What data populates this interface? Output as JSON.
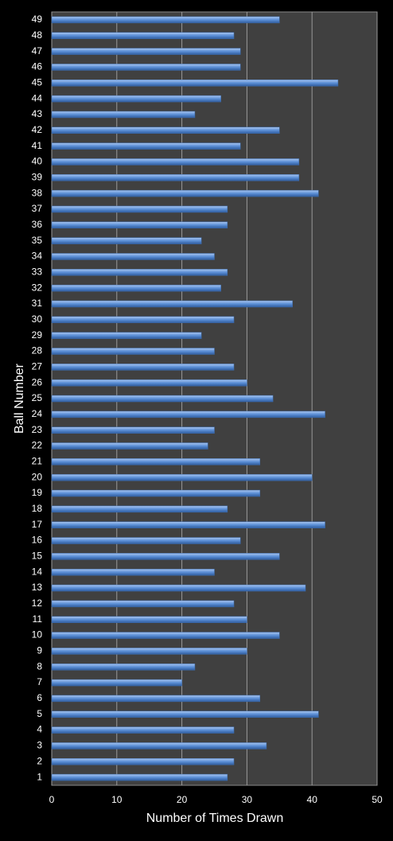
{
  "chart_data": {
    "type": "bar",
    "orientation": "horizontal",
    "x_label": "Number of Times Drawn",
    "y_label": "Ball Number",
    "categories": [
      "1",
      "2",
      "3",
      "4",
      "5",
      "6",
      "7",
      "8",
      "9",
      "10",
      "11",
      "12",
      "13",
      "14",
      "15",
      "16",
      "17",
      "18",
      "19",
      "20",
      "21",
      "22",
      "23",
      "24",
      "25",
      "26",
      "27",
      "28",
      "29",
      "30",
      "31",
      "32",
      "33",
      "34",
      "35",
      "36",
      "37",
      "38",
      "39",
      "40",
      "41",
      "42",
      "43",
      "44",
      "45",
      "46",
      "47",
      "48",
      "49"
    ],
    "values": [
      27,
      28,
      33,
      28,
      41,
      32,
      20,
      22,
      30,
      35,
      30,
      28,
      39,
      25,
      35,
      29,
      42,
      27,
      32,
      40,
      32,
      24,
      25,
      42,
      34,
      30,
      28,
      25,
      23,
      28,
      37,
      26,
      27,
      25,
      23,
      27,
      27,
      41,
      38,
      38,
      29,
      35,
      22,
      26,
      44,
      29,
      29,
      28,
      35
    ],
    "color": "#5b8fd6",
    "xlim": [
      0,
      50
    ],
    "xticks": [
      0,
      10,
      20,
      30,
      40,
      50
    ],
    "grid": true
  }
}
